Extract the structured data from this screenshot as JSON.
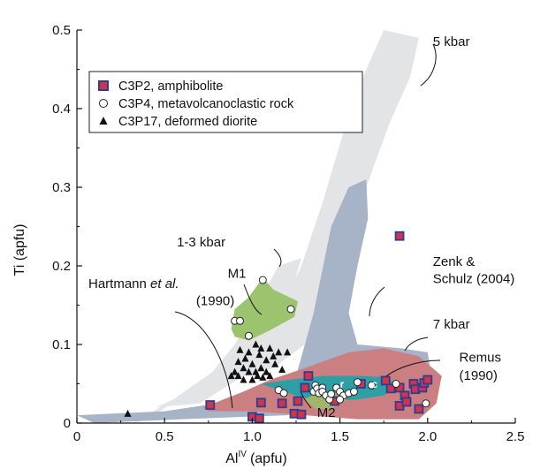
{
  "chart_data": {
    "type": "scatter",
    "xlabel": "Al",
    "xlabel_sup": "IV",
    "xlabel_unit": "(apfu)",
    "ylabel": "Ti (apfu)",
    "xlim": [
      0,
      2.5
    ],
    "ylim": [
      0,
      0.5
    ],
    "x_ticks": [
      0,
      0.5,
      1.0,
      1.5,
      2.0,
      2.5
    ],
    "x_tick_labels": [
      "0",
      "0.5",
      "1.0",
      "1.5",
      "2.0",
      "2.5"
    ],
    "y_ticks": [
      0,
      0.1,
      0.2,
      0.3,
      0.4,
      0.5
    ],
    "y_tick_labels": [
      "0",
      "0.1",
      "0.2",
      "0.3",
      "0.4",
      "0.5"
    ],
    "grid": false,
    "legend_position": "top-left",
    "series": [
      {
        "name": "C3P2, amphibolite",
        "marker": "square",
        "points": [
          [
            0.76,
            0.023
          ],
          [
            1.0,
            0.008
          ],
          [
            1.04,
            0.006
          ],
          [
            1.05,
            0.026
          ],
          [
            1.17,
            0.025
          ],
          [
            1.24,
            0.012
          ],
          [
            1.26,
            0.028
          ],
          [
            1.28,
            0.011
          ],
          [
            1.3,
            0.045
          ],
          [
            1.32,
            0.06
          ],
          [
            1.47,
            0.028
          ],
          [
            1.62,
            0.05
          ],
          [
            1.76,
            0.054
          ],
          [
            1.79,
            0.044
          ],
          [
            1.84,
            0.022
          ],
          [
            1.84,
            0.045
          ],
          [
            1.87,
            0.035
          ],
          [
            1.88,
            0.027
          ],
          [
            1.92,
            0.05
          ],
          [
            1.93,
            0.043
          ],
          [
            1.95,
            0.018
          ],
          [
            1.97,
            0.045
          ],
          [
            1.98,
            0.051
          ],
          [
            2.0,
            0.055
          ],
          [
            1.84,
            0.238
          ]
        ]
      },
      {
        "name": "C3P4, metavolcanoclastic rock",
        "marker": "circle",
        "points": [
          [
            0.9,
            0.13
          ],
          [
            0.93,
            0.13
          ],
          [
            0.98,
            0.111
          ],
          [
            1.06,
            0.182
          ],
          [
            1.22,
            0.145
          ],
          [
            1.15,
            0.042
          ],
          [
            1.18,
            0.038
          ],
          [
            1.35,
            0.04
          ],
          [
            1.36,
            0.048
          ],
          [
            1.37,
            0.044
          ],
          [
            1.38,
            0.038
          ],
          [
            1.4,
            0.045
          ],
          [
            1.4,
            0.04
          ],
          [
            1.42,
            0.035
          ],
          [
            1.44,
            0.03
          ],
          [
            1.45,
            0.037
          ],
          [
            1.48,
            0.045
          ],
          [
            1.5,
            0.04
          ],
          [
            1.52,
            0.035
          ],
          [
            1.55,
            0.038
          ],
          [
            1.58,
            0.04
          ],
          [
            1.6,
            0.052
          ],
          [
            1.68,
            0.048
          ],
          [
            1.82,
            0.05
          ],
          [
            1.99,
            0.025
          ],
          [
            1.5,
            0.03
          ]
        ]
      },
      {
        "name": "C3P17, deformed diorite",
        "marker": "triangle",
        "points": [
          [
            0.29,
            0.012
          ],
          [
            0.9,
            0.065
          ],
          [
            0.92,
            0.06
          ],
          [
            0.95,
            0.07
          ],
          [
            0.95,
            0.055
          ],
          [
            0.98,
            0.065
          ],
          [
            1.0,
            0.075
          ],
          [
            1.0,
            0.055
          ],
          [
            1.02,
            0.065
          ],
          [
            1.03,
            0.06
          ],
          [
            1.05,
            0.07
          ],
          [
            1.06,
            0.058
          ],
          [
            1.08,
            0.065
          ],
          [
            1.1,
            0.06
          ],
          [
            1.08,
            0.08
          ],
          [
            1.12,
            0.085
          ],
          [
            1.15,
            0.09
          ],
          [
            0.98,
            0.09
          ],
          [
            1.02,
            0.1
          ],
          [
            1.05,
            0.095
          ],
          [
            1.1,
            0.095
          ],
          [
            1.2,
            0.09
          ],
          [
            0.92,
            0.078
          ],
          [
            0.96,
            0.082
          ],
          [
            1.13,
            0.075
          ],
          [
            1.17,
            0.068
          ],
          [
            0.88,
            0.06
          ],
          [
            1.04,
            0.087
          ],
          [
            0.93,
            0.093
          ]
        ]
      }
    ],
    "regions": [
      {
        "name": "5 kbar to 1-3 kbar field",
        "color": "#e3e4e6",
        "polygon": [
          [
            0.32,
            0.0
          ],
          [
            0.55,
            0.03
          ],
          [
            0.9,
            0.085
          ],
          [
            1.15,
            0.14
          ],
          [
            1.28,
            0.2
          ],
          [
            1.4,
            0.28
          ],
          [
            1.52,
            0.37
          ],
          [
            1.65,
            0.45
          ],
          [
            1.75,
            0.5
          ],
          [
            1.95,
            0.49
          ],
          [
            1.9,
            0.44
          ],
          [
            1.78,
            0.38
          ],
          [
            1.65,
            0.3
          ],
          [
            1.52,
            0.22
          ],
          [
            1.38,
            0.15
          ],
          [
            1.3,
            0.1
          ],
          [
            1.12,
            0.07
          ],
          [
            0.65,
            0.04
          ],
          [
            0.4,
            0.005
          ]
        ]
      },
      {
        "name": "1-3 kbar field",
        "color": "#e3e4e6",
        "polygon": [
          [
            0.45,
            0.02
          ],
          [
            0.7,
            0.045
          ],
          [
            0.9,
            0.1
          ],
          [
            1.05,
            0.16
          ],
          [
            1.15,
            0.2
          ],
          [
            1.28,
            0.21
          ],
          [
            1.2,
            0.15
          ],
          [
            1.08,
            0.1
          ],
          [
            0.95,
            0.06
          ],
          [
            0.7,
            0.025
          ]
        ]
      },
      {
        "name": "Zenk & Schulz (2004)",
        "color": "#a7b3c7",
        "polygon": [
          [
            0.0,
            0.01
          ],
          [
            0.5,
            0.015
          ],
          [
            0.95,
            0.03
          ],
          [
            1.25,
            0.06
          ],
          [
            1.35,
            0.14
          ],
          [
            1.45,
            0.25
          ],
          [
            1.55,
            0.3
          ],
          [
            1.65,
            0.31
          ],
          [
            1.66,
            0.26
          ],
          [
            1.6,
            0.2
          ],
          [
            1.55,
            0.14
          ],
          [
            1.6,
            0.1
          ],
          [
            1.85,
            0.095
          ],
          [
            2.0,
            0.09
          ],
          [
            2.02,
            0.06
          ],
          [
            1.9,
            0.04
          ],
          [
            1.6,
            0.03
          ],
          [
            1.2,
            0.01
          ],
          [
            0.6,
            0.005
          ],
          [
            0.1,
            0.0
          ]
        ]
      },
      {
        "name": "7 kbar",
        "color": "#cc7f80",
        "polygon": [
          [
            0.72,
            0.02
          ],
          [
            0.95,
            0.04
          ],
          [
            1.1,
            0.055
          ],
          [
            1.3,
            0.07
          ],
          [
            1.55,
            0.09
          ],
          [
            1.75,
            0.095
          ],
          [
            1.95,
            0.085
          ],
          [
            2.08,
            0.06
          ],
          [
            2.05,
            0.025
          ],
          [
            1.95,
            0.005
          ],
          [
            1.6,
            0.005
          ],
          [
            1.3,
            0.01
          ],
          [
            1.0,
            0.015
          ],
          [
            0.75,
            0.015
          ]
        ]
      },
      {
        "name": "Remus (1990)",
        "color": "#2f9fa5",
        "polygon": [
          [
            1.05,
            0.05
          ],
          [
            1.2,
            0.055
          ],
          [
            1.4,
            0.06
          ],
          [
            1.62,
            0.06
          ],
          [
            1.78,
            0.058
          ],
          [
            1.82,
            0.045
          ],
          [
            1.75,
            0.035
          ],
          [
            1.6,
            0.03
          ],
          [
            1.4,
            0.028
          ],
          [
            1.25,
            0.035
          ]
        ]
      },
      {
        "name": "M1",
        "color": "#9cc46f",
        "polygon": [
          [
            0.88,
            0.12
          ],
          [
            0.9,
            0.145
          ],
          [
            0.98,
            0.16
          ],
          [
            1.06,
            0.185
          ],
          [
            1.12,
            0.17
          ],
          [
            1.26,
            0.155
          ],
          [
            1.24,
            0.135
          ],
          [
            1.1,
            0.118
          ],
          [
            0.98,
            0.105
          ],
          [
            0.9,
            0.11
          ]
        ]
      },
      {
        "name": "M2",
        "color": "#a3b56a",
        "polygon": [
          [
            1.3,
            0.03
          ],
          [
            1.38,
            0.04
          ],
          [
            1.48,
            0.038
          ],
          [
            1.54,
            0.03
          ],
          [
            1.45,
            0.018
          ],
          [
            1.36,
            0.018
          ]
        ]
      }
    ],
    "annotations": [
      {
        "text": "5 kbar",
        "x": 2.03,
        "y": 0.48
      },
      {
        "text": "1-3 kbar",
        "x": 0.57,
        "y": 0.225
      },
      {
        "text": "M1",
        "x": 0.86,
        "y": 0.185
      },
      {
        "text": "Zenk &",
        "x": 2.03,
        "y": 0.2
      },
      {
        "text": "Schulz (2004)",
        "x": 2.03,
        "y": 0.178
      },
      {
        "text": "Hartmann",
        "x": 0.08,
        "y": 0.172
      },
      {
        "text": "et al.",
        "x": 0.08,
        "y": 0.172
      },
      {
        "text": "(1990)",
        "x": 0.68,
        "y": 0.15
      },
      {
        "text": "7 kbar",
        "x": 2.03,
        "y": 0.12
      },
      {
        "text": "Remus",
        "x": 2.18,
        "y": 0.078
      },
      {
        "text": "(1990)",
        "x": 2.18,
        "y": 0.055
      },
      {
        "text": "M2",
        "x": 1.37,
        "y": 0.008
      },
      {
        "text": "r",
        "x": 1.5,
        "y": 0.045
      },
      {
        "text": "c",
        "x": 1.68,
        "y": 0.045
      }
    ]
  }
}
